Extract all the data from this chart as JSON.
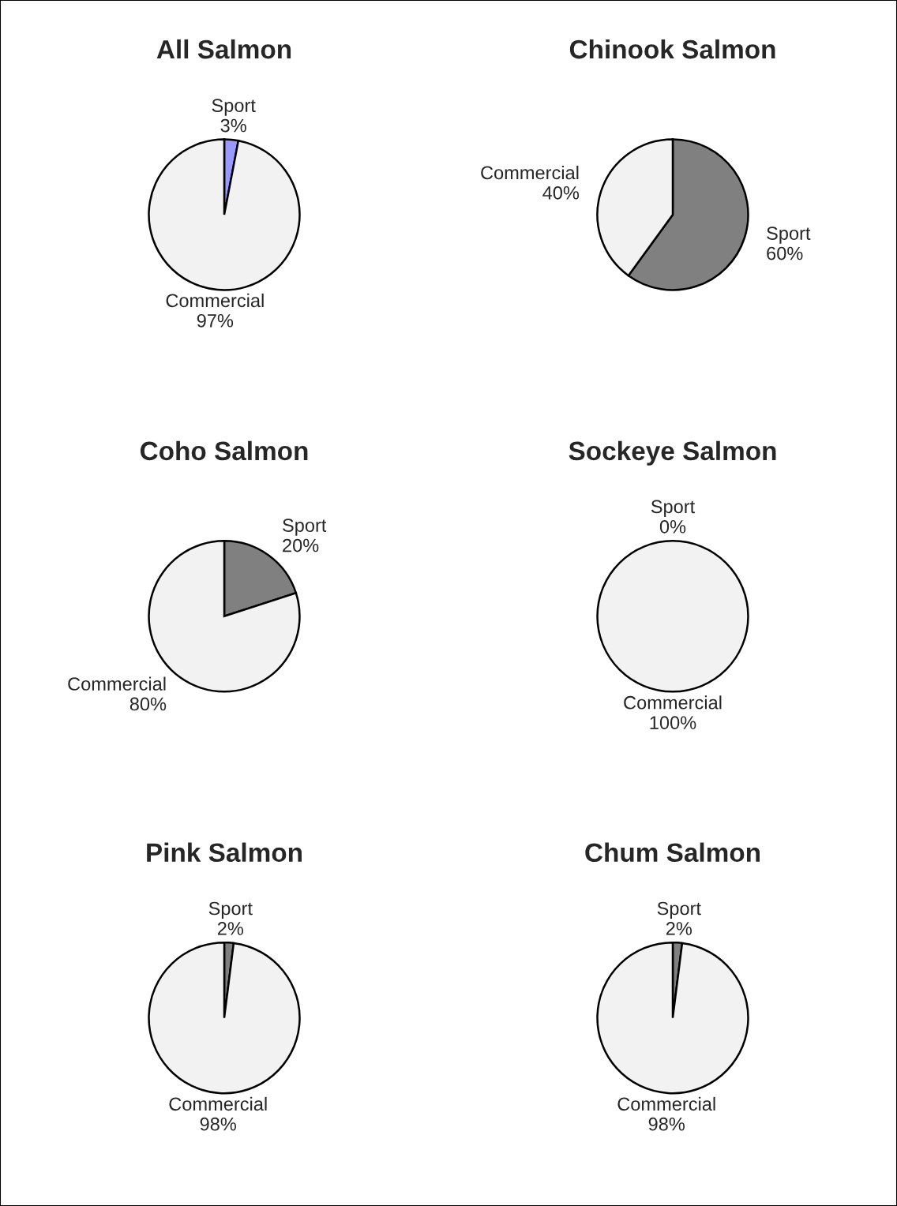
{
  "chart_data": [
    {
      "type": "pie",
      "title": "All Salmon",
      "categories": [
        "Sport",
        "Commercial"
      ],
      "values": [
        3,
        97
      ],
      "value_labels": [
        "3%",
        "97%"
      ],
      "colors": [
        "#9999ff",
        "#f2f2f2"
      ]
    },
    {
      "type": "pie",
      "title": "Chinook Salmon",
      "categories": [
        "Sport",
        "Commercial"
      ],
      "values": [
        60,
        40
      ],
      "value_labels": [
        "60%",
        "40%"
      ],
      "colors": [
        "#808080",
        "#f2f2f2"
      ]
    },
    {
      "type": "pie",
      "title": "Coho Salmon",
      "categories": [
        "Sport",
        "Commercial"
      ],
      "values": [
        20,
        80
      ],
      "value_labels": [
        "20%",
        "80%"
      ],
      "colors": [
        "#808080",
        "#f2f2f2"
      ]
    },
    {
      "type": "pie",
      "title": "Sockeye Salmon",
      "categories": [
        "Sport",
        "Commercial"
      ],
      "values": [
        0,
        100
      ],
      "value_labels": [
        "0%",
        "100%"
      ],
      "colors": [
        "#808080",
        "#f2f2f2"
      ]
    },
    {
      "type": "pie",
      "title": "Pink Salmon",
      "categories": [
        "Sport",
        "Commercial"
      ],
      "values": [
        2,
        98
      ],
      "value_labels": [
        "2%",
        "98%"
      ],
      "colors": [
        "#808080",
        "#f2f2f2"
      ]
    },
    {
      "type": "pie",
      "title": "Chum Salmon",
      "categories": [
        "Sport",
        "Commercial"
      ],
      "values": [
        2,
        98
      ],
      "value_labels": [
        "2%",
        "98%"
      ],
      "colors": [
        "#808080",
        "#f2f2f2"
      ]
    }
  ]
}
